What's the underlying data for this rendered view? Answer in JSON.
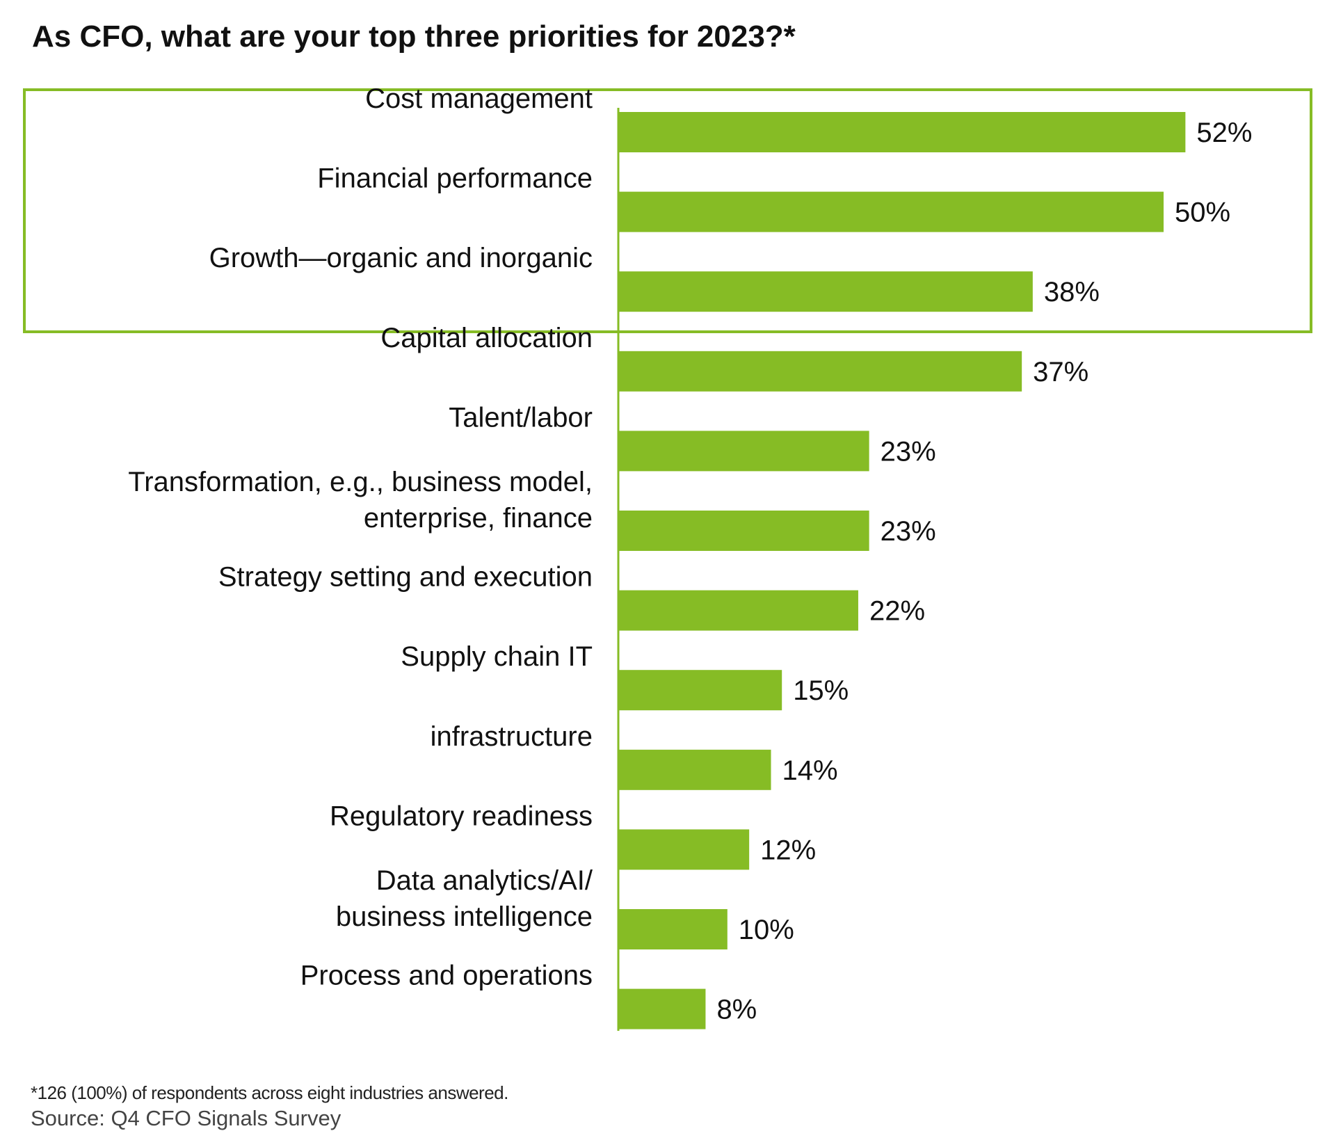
{
  "chart_data": {
    "type": "bar",
    "orientation": "horizontal",
    "title": "As CFO, what are your top three priorities for 2023?*",
    "categories": [
      "Cost management",
      "Financial performance",
      "Growth—organic and inorganic",
      "Capital allocation",
      "Talent/labor",
      "Transformation, e.g., business model,\nenterprise, finance",
      "Strategy setting and execution",
      "Supply chain IT",
      "infrastructure",
      "Regulatory readiness",
      "Data analytics/AI/\nbusiness intelligence",
      "Process and operations"
    ],
    "values": [
      52,
      50,
      38,
      37,
      23,
      23,
      22,
      15,
      14,
      12,
      10,
      8
    ],
    "value_labels": [
      "52%",
      "50%",
      "38%",
      "37%",
      "23%",
      "23%",
      "22%",
      "15%",
      "14%",
      "12%",
      "10%",
      "8%"
    ],
    "highlighted_top": 3,
    "xlim": [
      0,
      56
    ],
    "grid": false,
    "legend": "none",
    "bar_color": "#86bc25",
    "highlight_box_color": "#86bc25",
    "footnote": "*126 (100%) of respondents across eight industries answered.",
    "source": "Source: Q4 CFO Signals Survey"
  }
}
